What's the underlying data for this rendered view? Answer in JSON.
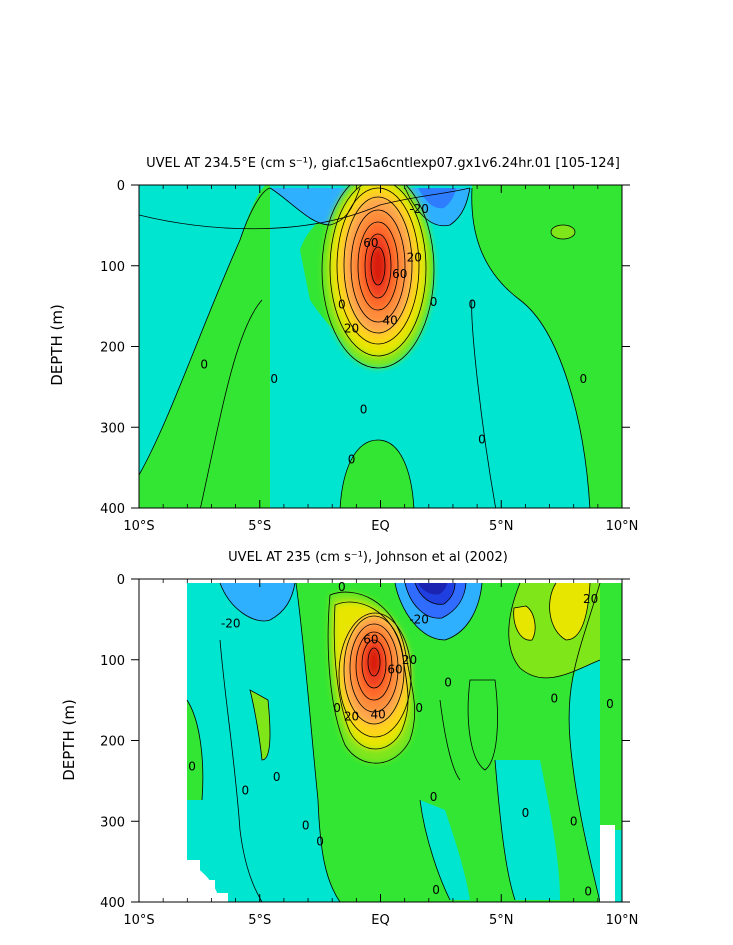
{
  "chart_data": [
    {
      "type": "contour",
      "title": "UVEL AT 234.5°E (cm s⁻¹), giaf.c15a6cntlexp07.gx1v6.24hr.01 [105-124]",
      "xlabel": "",
      "ylabel": "DEPTH (m)",
      "xlim": [
        -10,
        10
      ],
      "ylim": [
        400,
        0
      ],
      "x_ticks": [
        {
          "value": -10,
          "label": "10°S"
        },
        {
          "value": -5,
          "label": "5°S"
        },
        {
          "value": 0,
          "label": "EQ"
        },
        {
          "value": 5,
          "label": "5°N"
        },
        {
          "value": 10,
          "label": "10°N"
        }
      ],
      "y_ticks": [
        {
          "value": 0,
          "label": "0"
        },
        {
          "value": 100,
          "label": "100"
        },
        {
          "value": 200,
          "label": "200"
        },
        {
          "value": 300,
          "label": "300"
        },
        {
          "value": 400,
          "label": "400"
        }
      ],
      "contour_interval": 10,
      "colormap": {
        "-40": "#1f3fe0",
        "-30": "#2f6cff",
        "-20": "#2fb0ff",
        "-10": "#00e5f0",
        "0": "#39e86c",
        "10": "#33e633",
        "20": "#7fe61a",
        "30": "#e6e600",
        "40": "#ffd21a",
        "50": "#ffa64d",
        "60": "#ff8c3a",
        "70": "#ff6a2a",
        "80": "#f04020",
        "90": "#d81e10"
      },
      "features": [
        {
          "kind": "core",
          "name": "Equatorial Undercurrent",
          "x": 0,
          "depth": 100,
          "max": 95
        },
        {
          "kind": "westward",
          "x": 2.5,
          "depth": 20,
          "min": -25
        },
        {
          "kind": "westward",
          "x": -3,
          "depth": 25,
          "min": -15
        }
      ],
      "contour_labels": [
        {
          "text": "-20",
          "x": 1.6,
          "depth": 30
        },
        {
          "text": "60",
          "x": -0.4,
          "depth": 72
        },
        {
          "text": "60",
          "x": 0.8,
          "depth": 110
        },
        {
          "text": "20",
          "x": 1.4,
          "depth": 90
        },
        {
          "text": "40",
          "x": 0.4,
          "depth": 168
        },
        {
          "text": "20",
          "x": -1.2,
          "depth": 178
        },
        {
          "text": "0",
          "x": -1.6,
          "depth": 148
        },
        {
          "text": "0",
          "x": 2.2,
          "depth": 145
        },
        {
          "text": "0",
          "x": 3.8,
          "depth": 148
        },
        {
          "text": "0",
          "x": -7.3,
          "depth": 222
        },
        {
          "text": "0",
          "x": -4.4,
          "depth": 240
        },
        {
          "text": "0",
          "x": 8.4,
          "depth": 240
        },
        {
          "text": "0",
          "x": -0.7,
          "depth": 278
        },
        {
          "text": "0",
          "x": -1.2,
          "depth": 340
        },
        {
          "text": "0",
          "x": 4.2,
          "depth": 315
        }
      ]
    },
    {
      "type": "contour",
      "title": "UVEL AT 235 (cm s⁻¹), Johnson et al (2002)",
      "xlabel": "",
      "ylabel": "DEPTH (m)",
      "xlim": [
        -10,
        10
      ],
      "ylim": [
        400,
        0
      ],
      "x_ticks": [
        {
          "value": -10,
          "label": "10°S"
        },
        {
          "value": -5,
          "label": "5°S"
        },
        {
          "value": 0,
          "label": "EQ"
        },
        {
          "value": 5,
          "label": "5°N"
        },
        {
          "value": 10,
          "label": "10°N"
        }
      ],
      "y_ticks": [
        {
          "value": 0,
          "label": "0"
        },
        {
          "value": 100,
          "label": "100"
        },
        {
          "value": 200,
          "label": "200"
        },
        {
          "value": 300,
          "label": "300"
        },
        {
          "value": 400,
          "label": "400"
        }
      ],
      "data_extent_x": [
        -8,
        10
      ],
      "features": [
        {
          "kind": "core",
          "name": "Equatorial Undercurrent",
          "x": -0.3,
          "depth": 85,
          "max": 95
        },
        {
          "kind": "westward",
          "x": 2.6,
          "depth": 15,
          "min": -45
        },
        {
          "kind": "westward",
          "x": -3.6,
          "depth": 30,
          "min": -25
        },
        {
          "kind": "eastward",
          "x": 8.2,
          "depth": 25,
          "max": 30
        },
        {
          "kind": "eastward",
          "x": 5.8,
          "depth": 55,
          "max": 30
        }
      ],
      "contour_labels": [
        {
          "text": "-20",
          "x": -6.2,
          "depth": 55
        },
        {
          "text": "0",
          "x": -1.6,
          "depth": 10
        },
        {
          "text": "-20",
          "x": 1.6,
          "depth": 50
        },
        {
          "text": "20",
          "x": 8.7,
          "depth": 25
        },
        {
          "text": "60",
          "x": -0.4,
          "depth": 75
        },
        {
          "text": "60",
          "x": 0.6,
          "depth": 112
        },
        {
          "text": "20",
          "x": 1.2,
          "depth": 100
        },
        {
          "text": "40",
          "x": -0.1,
          "depth": 168
        },
        {
          "text": "20",
          "x": -1.2,
          "depth": 170
        },
        {
          "text": "0",
          "x": -1.8,
          "depth": 160
        },
        {
          "text": "0",
          "x": 1.6,
          "depth": 160
        },
        {
          "text": "0",
          "x": 2.8,
          "depth": 128
        },
        {
          "text": "0",
          "x": -7.8,
          "depth": 232
        },
        {
          "text": "0",
          "x": -5.6,
          "depth": 262
        },
        {
          "text": "0",
          "x": -4.3,
          "depth": 245
        },
        {
          "text": "0",
          "x": -3.1,
          "depth": 305
        },
        {
          "text": "0",
          "x": -2.5,
          "depth": 325
        },
        {
          "text": "0",
          "x": 2.2,
          "depth": 270
        },
        {
          "text": "0",
          "x": 6.0,
          "depth": 290
        },
        {
          "text": "0",
          "x": 7.2,
          "depth": 148
        },
        {
          "text": "0",
          "x": 9.5,
          "depth": 155
        },
        {
          "text": "0",
          "x": 8.0,
          "depth": 300
        },
        {
          "text": "0",
          "x": 2.3,
          "depth": 385
        },
        {
          "text": "0",
          "x": 8.6,
          "depth": 387
        }
      ]
    }
  ]
}
